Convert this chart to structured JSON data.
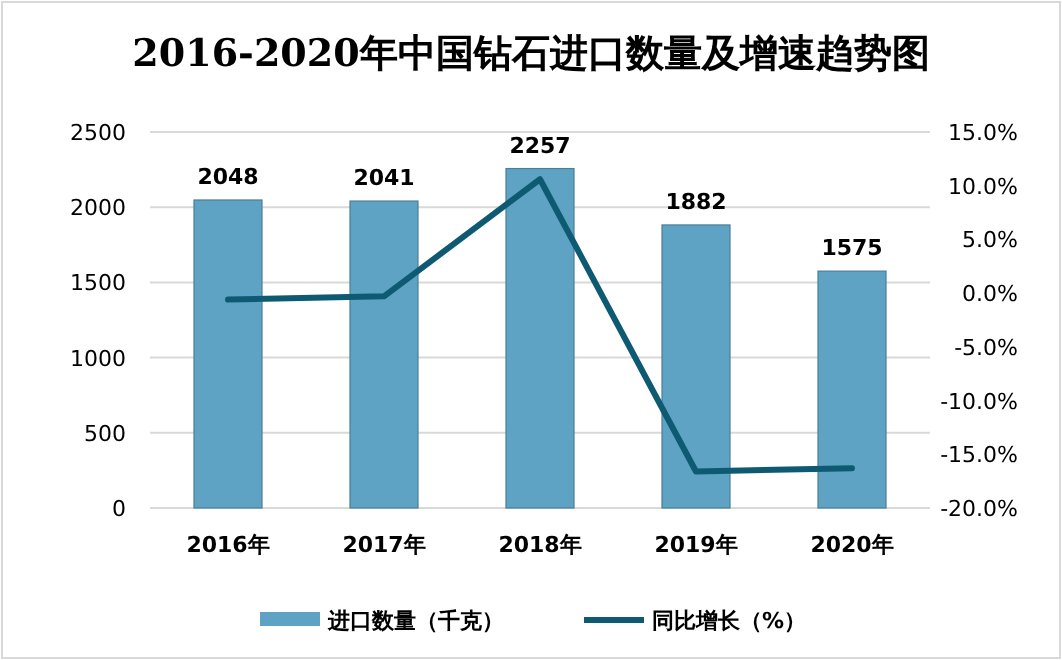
{
  "chart_data": {
    "type": "bar",
    "title": "2016-2020年中国钻石进口数量及增速趋势图",
    "categories": [
      "2016年",
      "2017年",
      "2018年",
      "2019年",
      "2020年"
    ],
    "series": [
      {
        "name": "进口数量（千克）",
        "color": "#5ea3c4",
        "values": [
          2048,
          2041,
          2257,
          1882,
          1575
        ],
        "value_labels": [
          "2048",
          "2041",
          "2257",
          "1882",
          "1575"
        ]
      },
      {
        "name": "同比增长（%）",
        "type": "line",
        "axis": "y2",
        "color": "#0e5a73",
        "values": [
          -0.6,
          -0.3,
          10.6,
          -16.6,
          -16.3
        ]
      }
    ],
    "ylim": [
      0,
      2500
    ],
    "yticks": [
      0,
      500,
      1000,
      1500,
      2000,
      2500
    ],
    "y2lim": [
      -20,
      15
    ],
    "y2ticks": [
      {
        "value": -20,
        "label": "-20.0%"
      },
      {
        "value": -15,
        "label": "-15.0%"
      },
      {
        "value": -10,
        "label": "-10.0%"
      },
      {
        "value": -5,
        "label": "-5.0%"
      },
      {
        "value": 0,
        "label": "0.0%"
      },
      {
        "value": 5,
        "label": "5.0%"
      },
      {
        "value": 10,
        "label": "10.0%"
      },
      {
        "value": 15,
        "label": "15.0%"
      }
    ],
    "grid": "y",
    "legend": "bottom",
    "line_style": "solid",
    "marker": "none"
  }
}
